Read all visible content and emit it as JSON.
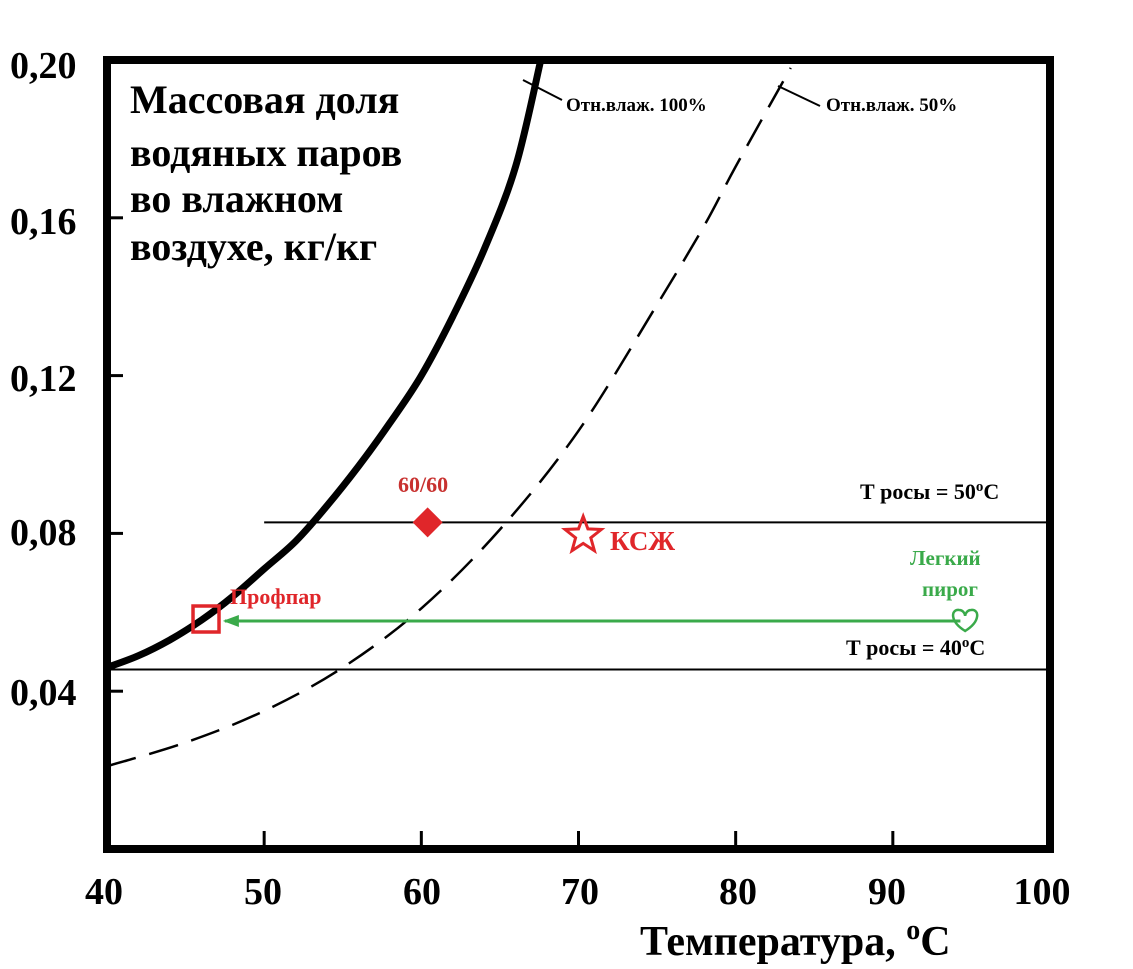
{
  "chart_data": {
    "type": "line",
    "title_lines": [
      "Массовая доля",
      "водяных паров",
      "во влажном",
      "воздухе, кг/кг"
    ],
    "xlabel": "Температура, ",
    "xlabel_unit": "C",
    "xlabel_sup": "o",
    "xlim": [
      40,
      100
    ],
    "ylim": [
      0,
      0.2
    ],
    "x_ticks": [
      40,
      50,
      60,
      70,
      80,
      90,
      100
    ],
    "x_tick_labels": [
      "40",
      "50",
      "60",
      "70",
      "80",
      "90",
      "100"
    ],
    "y_ticks": [
      0.04,
      0.08,
      0.12,
      0.16,
      0.2
    ],
    "y_tick_labels": [
      "0,04",
      "0,08",
      "0,12",
      "0,16",
      "0,20"
    ],
    "grid": false,
    "series": [
      {
        "name": "Отн.влаж. 100%",
        "style": "solid-thick",
        "x": [
          40,
          42,
          44,
          46,
          48,
          50,
          52,
          54,
          56,
          58,
          60,
          62,
          64,
          66,
          67.6
        ],
        "y": [
          0.046,
          0.049,
          0.053,
          0.058,
          0.064,
          0.071,
          0.078,
          0.087,
          0.097,
          0.108,
          0.12,
          0.135,
          0.152,
          0.173,
          0.2
        ]
      },
      {
        "name": "Отн.влаж. 50%",
        "style": "dashed",
        "x": [
          40,
          45,
          50,
          55,
          60,
          65,
          70,
          75,
          78,
          80,
          83.5
        ],
        "y": [
          0.021,
          0.027,
          0.035,
          0.046,
          0.061,
          0.081,
          0.106,
          0.138,
          0.158,
          0.173,
          0.198
        ]
      }
    ],
    "hlines": [
      {
        "label": "Т росы = 50",
        "sup": "o",
        "unit": "C",
        "y": 0.0828,
        "x_from": 50,
        "x_to": 100
      },
      {
        "label": "Т росы = 40",
        "sup": "o",
        "unit": "C",
        "y": 0.0455,
        "x_from": 40,
        "x_to": 100
      }
    ],
    "points": [
      {
        "label": "60/60",
        "marker": "filled-diamond",
        "color": "#e0262a",
        "x": 60.4,
        "y": 0.0828
      },
      {
        "label": "КСЖ",
        "marker": "outline-star",
        "color": "#e0262a",
        "x": 70.3,
        "y": 0.0795
      },
      {
        "label": "Профпар",
        "marker": "outline-square",
        "color": "#e0262a",
        "x": 46.3,
        "y": 0.0583
      },
      {
        "label_lines": [
          "Легкий",
          "пирог"
        ],
        "marker": "outline-heart",
        "color": "#3aaa4a",
        "x": 94.6,
        "y": 0.0578
      }
    ],
    "arrow": {
      "from_x": 94.3,
      "to_x": 47.5,
      "y": 0.0578,
      "color": "#3aaa4a"
    }
  }
}
